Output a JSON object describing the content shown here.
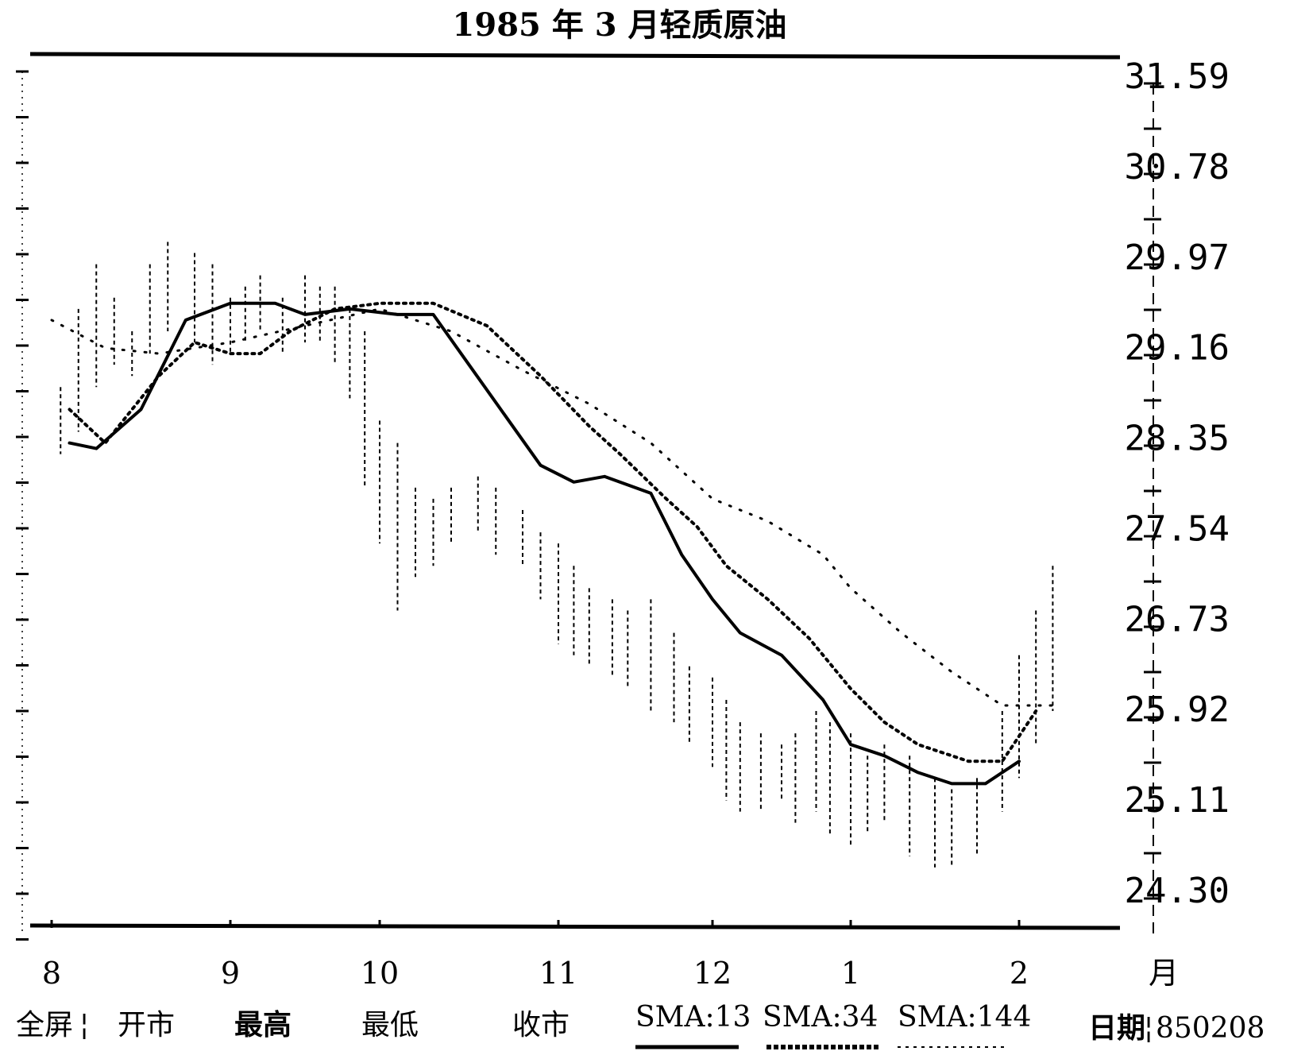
{
  "chart_data": {
    "type": "line",
    "title": "1985 年 3 月轻质原油",
    "y_ticks": [
      "31.59",
      "30.78",
      "29.97",
      "29.16",
      "28.35",
      "27.54",
      "26.73",
      "25.92",
      "25.11",
      "24.30"
    ],
    "ylim": [
      24.3,
      31.59
    ],
    "x_ticks": [
      "8",
      "9",
      "10",
      "11",
      "12",
      "1",
      "2"
    ],
    "x_unit": "月",
    "legend": {
      "full_screen": "全屏",
      "open": "开市",
      "high": "最高",
      "low": "最低",
      "close": "收市",
      "sma13": "SMA:13",
      "sma34": "SMA:34",
      "sma144": "SMA:144",
      "date_label": "日期",
      "date_value": "850208"
    },
    "x_positions_month": [
      0,
      1,
      2,
      3,
      4,
      5,
      6
    ],
    "series": [
      {
        "name": "SMA:13",
        "style": "solid",
        "x": [
          0.1,
          0.25,
          0.5,
          0.75,
          1.0,
          1.3,
          1.5,
          1.8,
          2.1,
          2.3,
          2.5,
          2.9,
          3.1,
          3.3,
          3.6,
          3.8,
          4.0,
          4.2,
          4.5,
          4.8,
          5.0,
          5.2,
          5.4,
          5.6,
          5.8,
          6.0
        ],
        "values": [
          28.3,
          28.25,
          28.6,
          29.4,
          29.55,
          29.55,
          29.45,
          29.5,
          29.45,
          29.45,
          29.0,
          28.1,
          27.95,
          28.0,
          27.85,
          27.3,
          26.9,
          26.6,
          26.4,
          26.0,
          25.6,
          25.5,
          25.35,
          25.25,
          25.25,
          25.45
        ]
      },
      {
        "name": "SMA:34",
        "style": "dotted",
        "x": [
          0.1,
          0.3,
          0.6,
          0.8,
          1.0,
          1.2,
          1.4,
          1.7,
          2.0,
          2.3,
          2.6,
          2.9,
          3.2,
          3.4,
          3.7,
          3.9,
          4.1,
          4.4,
          4.7,
          5.0,
          5.2,
          5.4,
          5.7,
          5.9,
          6.1
        ],
        "values": [
          28.6,
          28.3,
          28.9,
          29.2,
          29.1,
          29.1,
          29.3,
          29.5,
          29.55,
          29.55,
          29.35,
          28.9,
          28.45,
          28.2,
          27.8,
          27.55,
          27.2,
          26.9,
          26.55,
          26.1,
          25.8,
          25.6,
          25.45,
          25.45,
          25.9
        ]
      },
      {
        "name": "SMA:144",
        "style": "sparse-dotted",
        "x": [
          0.0,
          0.3,
          0.6,
          1.0,
          1.5,
          2.0,
          2.4,
          2.8,
          3.2,
          3.6,
          4.0,
          4.4,
          4.8,
          5.0,
          5.3,
          5.6,
          5.9,
          6.2
        ],
        "values": [
          29.4,
          29.15,
          29.1,
          29.2,
          29.35,
          29.5,
          29.3,
          28.95,
          28.65,
          28.3,
          27.8,
          27.6,
          27.3,
          27.0,
          26.6,
          26.25,
          25.95,
          25.95
        ]
      }
    ],
    "price_bars": {
      "name": "开市/最高/最低/收市",
      "x": [
        0.05,
        0.15,
        0.25,
        0.35,
        0.45,
        0.55,
        0.65,
        0.8,
        0.9,
        1.0,
        1.1,
        1.2,
        1.35,
        1.5,
        1.6,
        1.7,
        1.8,
        1.9,
        2.0,
        2.1,
        2.2,
        2.3,
        2.4,
        2.55,
        2.65,
        2.8,
        2.9,
        3.0,
        3.1,
        3.2,
        3.35,
        3.45,
        3.6,
        3.75,
        3.85,
        4.0,
        4.1,
        4.2,
        4.35,
        4.5,
        4.6,
        4.75,
        4.85,
        5.0,
        5.1,
        5.2,
        5.35,
        5.5,
        5.6,
        5.75,
        5.9,
        6.0,
        6.1,
        6.2
      ],
      "high": [
        28.8,
        29.5,
        29.9,
        29.6,
        29.3,
        29.9,
        30.1,
        30.0,
        29.9,
        29.6,
        29.7,
        29.8,
        29.6,
        29.8,
        29.7,
        29.7,
        29.5,
        29.3,
        28.5,
        28.3,
        27.9,
        27.8,
        27.9,
        28.0,
        27.9,
        27.7,
        27.5,
        27.4,
        27.2,
        27.0,
        26.9,
        26.8,
        26.9,
        26.6,
        26.3,
        26.2,
        26.0,
        25.8,
        25.7,
        25.6,
        25.7,
        25.9,
        25.8,
        25.7,
        25.5,
        25.6,
        25.5,
        25.3,
        25.2,
        25.3,
        25.9,
        26.4,
        26.8,
        27.2
      ],
      "low": [
        28.2,
        28.4,
        28.8,
        29.0,
        28.9,
        29.1,
        29.3,
        29.2,
        29.0,
        29.1,
        29.2,
        29.3,
        29.1,
        29.2,
        29.2,
        29.0,
        28.7,
        27.9,
        27.4,
        26.8,
        27.1,
        27.2,
        27.4,
        27.5,
        27.3,
        27.2,
        26.9,
        26.5,
        26.4,
        26.3,
        26.2,
        26.1,
        25.9,
        25.8,
        25.6,
        25.4,
        25.1,
        25.0,
        25.0,
        25.1,
        24.9,
        25.0,
        24.8,
        24.7,
        24.8,
        24.9,
        24.6,
        24.5,
        24.5,
        24.6,
        25.0,
        25.3,
        25.6,
        25.9
      ]
    }
  }
}
